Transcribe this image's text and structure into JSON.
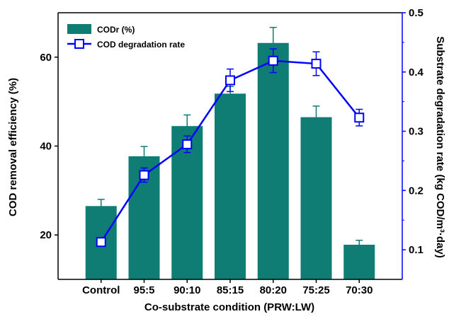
{
  "chart_data": {
    "type": "bar+line",
    "categories": [
      "Control",
      "95:5",
      "90:10",
      "85:15",
      "80:20",
      "75:25",
      "70:30"
    ],
    "xlabel": "Co-substrate condition (PRW:LW)",
    "ylabel_left": "COD removal efficiency (%)",
    "ylabel_right": "Substrate degradation rate (kg COD/m³·day)",
    "ylim_left": [
      10,
      70
    ],
    "yticks_left": [
      20,
      40,
      60
    ],
    "ylim_right": [
      0.05,
      0.5
    ],
    "yticks_right": [
      0.1,
      0.2,
      0.3,
      0.4,
      0.5
    ],
    "legend_position": "top-left",
    "grid": false,
    "series": [
      {
        "name": "CODr (%)",
        "kind": "bar",
        "axis": "left",
        "color": "#0f7d74",
        "values": [
          26.5,
          37.7,
          44.5,
          51.8,
          63.2,
          46.5,
          17.8
        ],
        "errors": [
          1.5,
          2.2,
          2.5,
          1.6,
          3.5,
          2.5,
          1.0
        ]
      },
      {
        "name": "COD degradation rate",
        "kind": "line",
        "axis": "right",
        "color": "#0000ff",
        "values": [
          0.113,
          0.226,
          0.278,
          0.386,
          0.419,
          0.414,
          0.323
        ],
        "errors": [
          0.0,
          0.012,
          0.014,
          0.019,
          0.02,
          0.02,
          0.014
        ]
      }
    ]
  }
}
